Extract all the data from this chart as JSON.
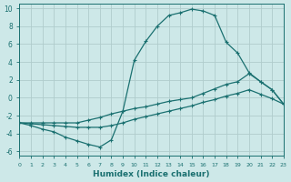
{
  "xlabel": "Humidex (Indice chaleur)",
  "bg_color": "#cde8e8",
  "grid_color": "#b0cccc",
  "line_color": "#1a7070",
  "xlim": [
    0,
    23
  ],
  "ylim": [
    -6.5,
    10.5
  ],
  "xticks": [
    0,
    1,
    2,
    3,
    4,
    5,
    6,
    7,
    8,
    9,
    10,
    11,
    12,
    13,
    14,
    15,
    16,
    17,
    18,
    19,
    20,
    21,
    22,
    23
  ],
  "yticks": [
    -6,
    -4,
    -2,
    0,
    2,
    4,
    6,
    8,
    10
  ],
  "line1_x": [
    0,
    1,
    2,
    3,
    4,
    5,
    6,
    7,
    8,
    9,
    10,
    11,
    12,
    13,
    14,
    15,
    16,
    17,
    18,
    19,
    20,
    21,
    22,
    23
  ],
  "line1_y": [
    -2.8,
    -3.1,
    -3.5,
    -3.8,
    -4.4,
    -4.8,
    -5.2,
    -5.5,
    -4.7,
    -1.5,
    4.2,
    6.3,
    8.0,
    9.2,
    9.5,
    9.9,
    9.7,
    9.2,
    6.2,
    5.0,
    2.8,
    1.8,
    0.9,
    -0.7
  ],
  "line2_x": [
    0,
    1,
    2,
    3,
    4,
    5,
    6,
    7,
    8,
    9,
    10,
    11,
    12,
    13,
    14,
    15,
    16,
    17,
    18,
    19,
    20,
    21,
    22,
    23
  ],
  "line2_y": [
    -2.8,
    -2.8,
    -2.8,
    -2.8,
    -2.8,
    -2.8,
    -2.5,
    -2.2,
    -1.8,
    -1.5,
    -1.2,
    -1.0,
    -0.7,
    -0.4,
    -0.2,
    0.0,
    0.5,
    1.0,
    1.5,
    1.8,
    2.7,
    1.8,
    0.9,
    -0.7
  ],
  "line3_x": [
    0,
    1,
    2,
    3,
    4,
    5,
    6,
    7,
    8,
    9,
    10,
    11,
    12,
    13,
    14,
    15,
    16,
    17,
    18,
    19,
    20,
    21,
    22,
    23
  ],
  "line3_y": [
    -2.8,
    -2.9,
    -3.0,
    -3.1,
    -3.2,
    -3.3,
    -3.3,
    -3.3,
    -3.1,
    -2.8,
    -2.4,
    -2.1,
    -1.8,
    -1.5,
    -1.2,
    -0.9,
    -0.5,
    -0.2,
    0.2,
    0.5,
    0.9,
    0.4,
    -0.1,
    -0.7
  ]
}
